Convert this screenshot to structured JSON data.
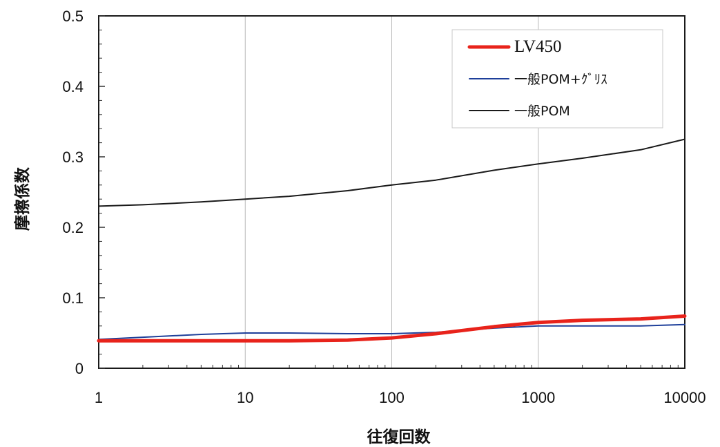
{
  "chart_data": {
    "type": "line",
    "xscale": "log",
    "xlim": [
      1,
      10000
    ],
    "ylim": [
      0,
      0.5
    ],
    "xlabel": "往復回数",
    "ylabel": "摩擦係数",
    "x_tick_labels": [
      "1",
      "10",
      "100",
      "1000",
      "10000"
    ],
    "y_tick_labels": [
      "0",
      "0.1",
      "0.2",
      "0.3",
      "0.4",
      "0.5"
    ],
    "grid": "vertical major lines",
    "legend_position": "top-right",
    "series": [
      {
        "name": "LV450",
        "color": "#e8231b",
        "x": [
          1,
          2,
          5,
          10,
          20,
          50,
          100,
          200,
          500,
          1000,
          2000,
          5000,
          10000
        ],
        "y": [
          0.039,
          0.039,
          0.039,
          0.039,
          0.039,
          0.04,
          0.043,
          0.049,
          0.059,
          0.065,
          0.068,
          0.07,
          0.074
        ]
      },
      {
        "name": "一般POM+ｸﾞﾘｽ",
        "color": "#1e3f9a",
        "x": [
          1,
          2,
          5,
          10,
          20,
          50,
          100,
          200,
          500,
          1000,
          2000,
          5000,
          10000
        ],
        "y": [
          0.041,
          0.044,
          0.048,
          0.05,
          0.05,
          0.049,
          0.049,
          0.051,
          0.057,
          0.06,
          0.06,
          0.06,
          0.062
        ]
      },
      {
        "name": "一般POM",
        "color": "#1a1a1a",
        "x": [
          1,
          2,
          5,
          10,
          20,
          50,
          100,
          200,
          500,
          1000,
          2000,
          5000,
          10000
        ],
        "y": [
          0.23,
          0.232,
          0.236,
          0.24,
          0.244,
          0.252,
          0.26,
          0.267,
          0.281,
          0.29,
          0.298,
          0.31,
          0.325
        ]
      }
    ]
  }
}
